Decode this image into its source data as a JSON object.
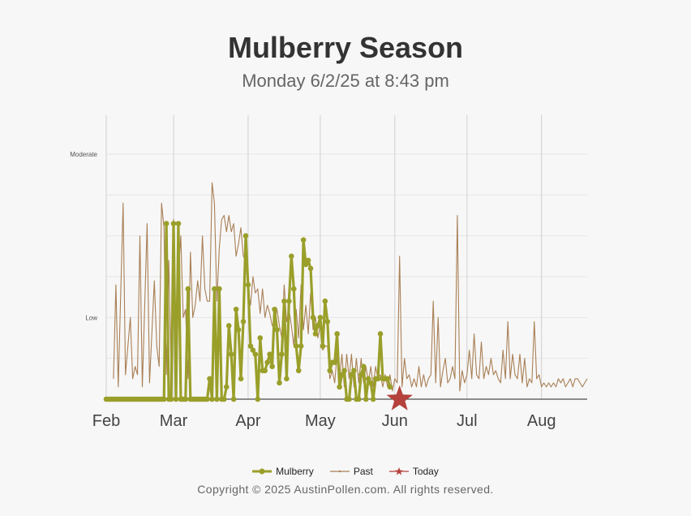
{
  "title": "Mulberry Season",
  "subtitle": "Monday 6/2/25 at 8:43 pm",
  "copyright": "Copyright © 2025 AustinPollen.com.  All rights reserved.",
  "colors": {
    "mulberry": "#9a9f2a",
    "past": "#a97f55",
    "today": "#b4413c",
    "grid": "#d0d0d0",
    "axis": "#222222"
  },
  "legend": {
    "mulberry": "Mulberry",
    "past": "Past",
    "today": "Today"
  },
  "chart_data": {
    "type": "line",
    "title": "Mulberry Season",
    "subtitle": "Monday 6/2/25 at 8:43 pm",
    "x_ticks": [
      {
        "label": "Feb",
        "day": 0
      },
      {
        "label": "Mar",
        "day": 28
      },
      {
        "label": "Apr",
        "day": 59
      },
      {
        "label": "May",
        "day": 89
      },
      {
        "label": "Jun",
        "day": 120
      },
      {
        "label": "Jul",
        "day": 150
      },
      {
        "label": "Aug",
        "day": 181
      }
    ],
    "x_range": [
      0,
      200
    ],
    "y_range": [
      0,
      6
    ],
    "y_ticks": [
      {
        "label": "",
        "value": 1
      },
      {
        "label": "Low",
        "value": 2
      },
      {
        "label": "",
        "value": 3
      },
      {
        "label": "",
        "value": 4
      },
      {
        "label": "",
        "value": 5
      },
      {
        "label": "Moderate",
        "value": 6
      }
    ],
    "grid": true,
    "legend_position": "bottom",
    "series": [
      {
        "name": "Mulberry",
        "points": [
          [
            0,
            0
          ],
          [
            1,
            0
          ],
          [
            2,
            0
          ],
          [
            3,
            0
          ],
          [
            4,
            0
          ],
          [
            5,
            0
          ],
          [
            6,
            0
          ],
          [
            7,
            0
          ],
          [
            8,
            0
          ],
          [
            9,
            0
          ],
          [
            10,
            0
          ],
          [
            11,
            0
          ],
          [
            12,
            0
          ],
          [
            13,
            0
          ],
          [
            14,
            0
          ],
          [
            15,
            0
          ],
          [
            16,
            0
          ],
          [
            17,
            0
          ],
          [
            18,
            0
          ],
          [
            19,
            0
          ],
          [
            20,
            0
          ],
          [
            21,
            0
          ],
          [
            22,
            0
          ],
          [
            23,
            0
          ],
          [
            24,
            0
          ],
          [
            25,
            4.3
          ],
          [
            26,
            0
          ],
          [
            27,
            0
          ],
          [
            28,
            4.3
          ],
          [
            29,
            0
          ],
          [
            30,
            4.3
          ],
          [
            31,
            0
          ],
          [
            32,
            0
          ],
          [
            33,
            0
          ],
          [
            34,
            2.7
          ],
          [
            35,
            0
          ],
          [
            36,
            0
          ],
          [
            37,
            0
          ],
          [
            38,
            0
          ],
          [
            39,
            0
          ],
          [
            40,
            0
          ],
          [
            41,
            0
          ],
          [
            42,
            0
          ],
          [
            43,
            0.5
          ],
          [
            44,
            0
          ],
          [
            45,
            2.7
          ],
          [
            46,
            0
          ],
          [
            47,
            2.7
          ],
          [
            48,
            0
          ],
          [
            49,
            0
          ],
          [
            50,
            0.3
          ],
          [
            51,
            1.8
          ],
          [
            52,
            1.1
          ],
          [
            53,
            0
          ],
          [
            54,
            2.2
          ],
          [
            55,
            1.7
          ],
          [
            56,
            0.5
          ],
          [
            57,
            1.9
          ],
          [
            58,
            4.0
          ],
          [
            59,
            2.8
          ],
          [
            60,
            1.3
          ],
          [
            61,
            1.2
          ],
          [
            62,
            1.1
          ],
          [
            63,
            0
          ],
          [
            64,
            1.5
          ],
          [
            65,
            0.7
          ],
          [
            66,
            0.7
          ],
          [
            67,
            0.9
          ],
          [
            68,
            1.1
          ],
          [
            69,
            0.8
          ],
          [
            70,
            2.2
          ],
          [
            71,
            1.7
          ],
          [
            72,
            0.4
          ],
          [
            73,
            1.1
          ],
          [
            74,
            2.4
          ],
          [
            75,
            0.5
          ],
          [
            76,
            2.4
          ],
          [
            77,
            3.5
          ],
          [
            78,
            2.7
          ],
          [
            79,
            1.3
          ],
          [
            80,
            0.7
          ],
          [
            81,
            1.3
          ],
          [
            82,
            3.9
          ],
          [
            83,
            3.3
          ],
          [
            84,
            3.4
          ],
          [
            85,
            3.2
          ],
          [
            86,
            2.0
          ],
          [
            87,
            1.6
          ],
          [
            88,
            1.8
          ],
          [
            89,
            2.0
          ],
          [
            90,
            1.3
          ],
          [
            91,
            2.4
          ],
          [
            92,
            1.9
          ],
          [
            93,
            0.7
          ],
          [
            94,
            0.9
          ],
          [
            95,
            0.9
          ],
          [
            96,
            1.6
          ],
          [
            97,
            0.3
          ],
          [
            98,
            0.6
          ],
          [
            99,
            0.7
          ],
          [
            100,
            0
          ],
          [
            101,
            0
          ],
          [
            102,
            0.6
          ],
          [
            103,
            0.7
          ],
          [
            104,
            0
          ],
          [
            105,
            0
          ],
          [
            106,
            0.6
          ],
          [
            107,
            0.8
          ],
          [
            108,
            0
          ],
          [
            109,
            0.5
          ],
          [
            110,
            0.4
          ],
          [
            111,
            0
          ],
          [
            112,
            0.5
          ],
          [
            113,
            0.5
          ],
          [
            114,
            1.6
          ],
          [
            115,
            0.5
          ],
          [
            116,
            0.5
          ],
          [
            117,
            0.5
          ],
          [
            118,
            0.3
          ]
        ]
      },
      {
        "name": "Past",
        "points": [
          [
            3,
            0.5
          ],
          [
            4,
            2.8
          ],
          [
            5,
            0.3
          ],
          [
            7,
            4.8
          ],
          [
            8,
            0.6
          ],
          [
            10,
            2.0
          ],
          [
            11,
            0.5
          ],
          [
            12,
            0.8
          ],
          [
            13,
            0.6
          ],
          [
            14,
            4.0
          ],
          [
            15,
            0.3
          ],
          [
            17,
            4.3
          ],
          [
            18,
            0.4
          ],
          [
            20,
            2.9
          ],
          [
            21,
            1.3
          ],
          [
            22,
            0.8
          ],
          [
            23,
            4.8
          ],
          [
            24,
            4.2
          ],
          [
            25,
            0.6
          ],
          [
            26,
            3.4
          ],
          [
            27,
            0.6
          ],
          [
            28,
            4.4
          ],
          [
            29,
            1.2
          ],
          [
            30,
            3.0
          ],
          [
            31,
            4.0
          ],
          [
            32,
            2.0
          ],
          [
            33,
            2.2
          ],
          [
            34,
            0.5
          ],
          [
            35,
            3.6
          ],
          [
            36,
            2.0
          ],
          [
            37,
            2.3
          ],
          [
            38,
            2.9
          ],
          [
            39,
            2.4
          ],
          [
            40,
            4.0
          ],
          [
            41,
            2.7
          ],
          [
            42,
            2.4
          ],
          [
            43,
            2.4
          ],
          [
            44,
            5.3
          ],
          [
            45,
            4.8
          ],
          [
            46,
            2.4
          ],
          [
            47,
            3.7
          ],
          [
            48,
            4.4
          ],
          [
            49,
            4.5
          ],
          [
            50,
            4.1
          ],
          [
            51,
            4.5
          ],
          [
            52,
            4.1
          ],
          [
            53,
            4.3
          ],
          [
            54,
            3.5
          ],
          [
            55,
            3.8
          ],
          [
            56,
            4.2
          ],
          [
            57,
            3.5
          ],
          [
            58,
            3.4
          ],
          [
            59,
            2.7
          ],
          [
            60,
            2.3
          ],
          [
            61,
            3.0
          ],
          [
            62,
            2.6
          ],
          [
            63,
            2.7
          ],
          [
            64,
            2.1
          ],
          [
            65,
            2.7
          ],
          [
            66,
            2.0
          ],
          [
            67,
            2.3
          ],
          [
            68,
            2.1
          ],
          [
            69,
            1.8
          ],
          [
            70,
            1.9
          ],
          [
            71,
            2.2
          ],
          [
            72,
            1.8
          ],
          [
            73,
            1.5
          ],
          [
            74,
            2.8
          ],
          [
            75,
            1.9
          ],
          [
            76,
            2.2
          ],
          [
            77,
            1.8
          ],
          [
            78,
            1.3
          ],
          [
            79,
            2.2
          ],
          [
            80,
            1.5
          ],
          [
            81,
            2.8
          ],
          [
            82,
            1.7
          ],
          [
            83,
            2.3
          ],
          [
            84,
            1.6
          ],
          [
            85,
            2.6
          ],
          [
            86,
            1.7
          ],
          [
            87,
            2.0
          ],
          [
            88,
            1.5
          ],
          [
            89,
            1.8
          ],
          [
            90,
            1.2
          ],
          [
            91,
            1.3
          ],
          [
            92,
            1.3
          ],
          [
            93,
            0.5
          ],
          [
            94,
            0.7
          ],
          [
            95,
            0.4
          ],
          [
            96,
            1.1
          ],
          [
            97,
            0.5
          ],
          [
            98,
            1.1
          ],
          [
            99,
            0.3
          ],
          [
            100,
            1.1
          ],
          [
            101,
            0.5
          ],
          [
            102,
            1.1
          ],
          [
            103,
            0.3
          ],
          [
            104,
            1.0
          ],
          [
            105,
            0.4
          ],
          [
            106,
            1.0
          ],
          [
            107,
            0.4
          ],
          [
            108,
            0.8
          ],
          [
            109,
            0.4
          ],
          [
            110,
            0.8
          ],
          [
            111,
            0.3
          ],
          [
            112,
            0.8
          ],
          [
            113,
            0.5
          ],
          [
            114,
            0.6
          ],
          [
            115,
            0.3
          ],
          [
            116,
            0.6
          ],
          [
            117,
            0.3
          ],
          [
            118,
            0.6
          ],
          [
            119,
            0.2
          ],
          [
            120,
            0.5
          ],
          [
            121,
            0.4
          ],
          [
            122,
            3.5
          ],
          [
            123,
            0.3
          ],
          [
            124,
            1.0
          ],
          [
            125,
            0.5
          ],
          [
            126,
            0.6
          ],
          [
            127,
            0.3
          ],
          [
            128,
            0.5
          ],
          [
            129,
            0.3
          ],
          [
            130,
            0.8
          ],
          [
            131,
            0.3
          ],
          [
            132,
            0.6
          ],
          [
            133,
            0.3
          ],
          [
            134,
            0.5
          ],
          [
            135,
            0.6
          ],
          [
            136,
            2.4
          ],
          [
            137,
            0.4
          ],
          [
            138,
            2.0
          ],
          [
            139,
            0.3
          ],
          [
            140,
            0.7
          ],
          [
            141,
            1.0
          ],
          [
            142,
            0.4
          ],
          [
            143,
            0.5
          ],
          [
            144,
            0.8
          ],
          [
            145,
            0.5
          ],
          [
            146,
            4.5
          ],
          [
            147,
            0.2
          ],
          [
            148,
            0.7
          ],
          [
            149,
            0.4
          ],
          [
            150,
            0.6
          ],
          [
            151,
            1.2
          ],
          [
            152,
            0.5
          ],
          [
            153,
            1.6
          ],
          [
            154,
            0.6
          ],
          [
            155,
            0.5
          ],
          [
            156,
            1.4
          ],
          [
            157,
            0.5
          ],
          [
            158,
            0.8
          ],
          [
            159,
            0.6
          ],
          [
            160,
            1.0
          ],
          [
            161,
            0.6
          ],
          [
            162,
            0.7
          ],
          [
            163,
            0.5
          ],
          [
            164,
            0.4
          ],
          [
            165,
            1.2
          ],
          [
            166,
            0.5
          ],
          [
            167,
            1.9
          ],
          [
            168,
            0.5
          ],
          [
            169,
            1.1
          ],
          [
            170,
            0.6
          ],
          [
            171,
            0.5
          ],
          [
            172,
            1.1
          ],
          [
            173,
            0.4
          ],
          [
            174,
            1.0
          ],
          [
            175,
            0.3
          ],
          [
            176,
            0.5
          ],
          [
            177,
            0.4
          ],
          [
            178,
            1.9
          ],
          [
            179,
            0.5
          ],
          [
            180,
            0.6
          ],
          [
            181,
            0.3
          ],
          [
            182,
            0.4
          ],
          [
            183,
            0.3
          ],
          [
            184,
            0.4
          ],
          [
            185,
            0.3
          ],
          [
            186,
            0.4
          ],
          [
            187,
            0.3
          ],
          [
            188,
            0.5
          ],
          [
            189,
            0.4
          ],
          [
            190,
            0.5
          ],
          [
            191,
            0.3
          ],
          [
            192,
            0.4
          ],
          [
            193,
            0.5
          ],
          [
            194,
            0.3
          ],
          [
            195,
            0.5
          ],
          [
            196,
            0.5
          ],
          [
            197,
            0.4
          ],
          [
            198,
            0.3
          ],
          [
            199,
            0.4
          ],
          [
            200,
            0.5
          ]
        ]
      },
      {
        "name": "Today",
        "points": [
          [
            122,
            0
          ]
        ]
      }
    ]
  }
}
